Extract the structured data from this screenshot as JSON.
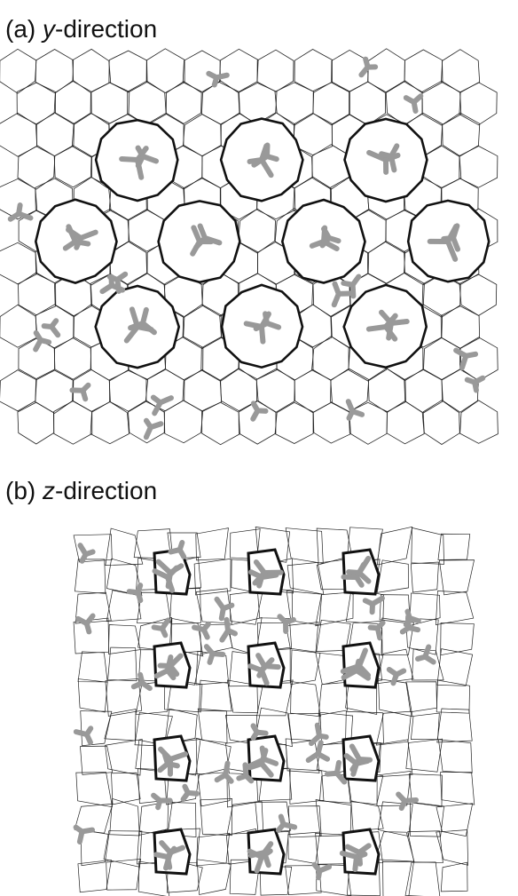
{
  "panels": [
    {
      "label": "(a)",
      "axis": "y",
      "suffix": "-direction"
    },
    {
      "label": "(b)",
      "axis": "z",
      "suffix": "-direction"
    }
  ]
}
